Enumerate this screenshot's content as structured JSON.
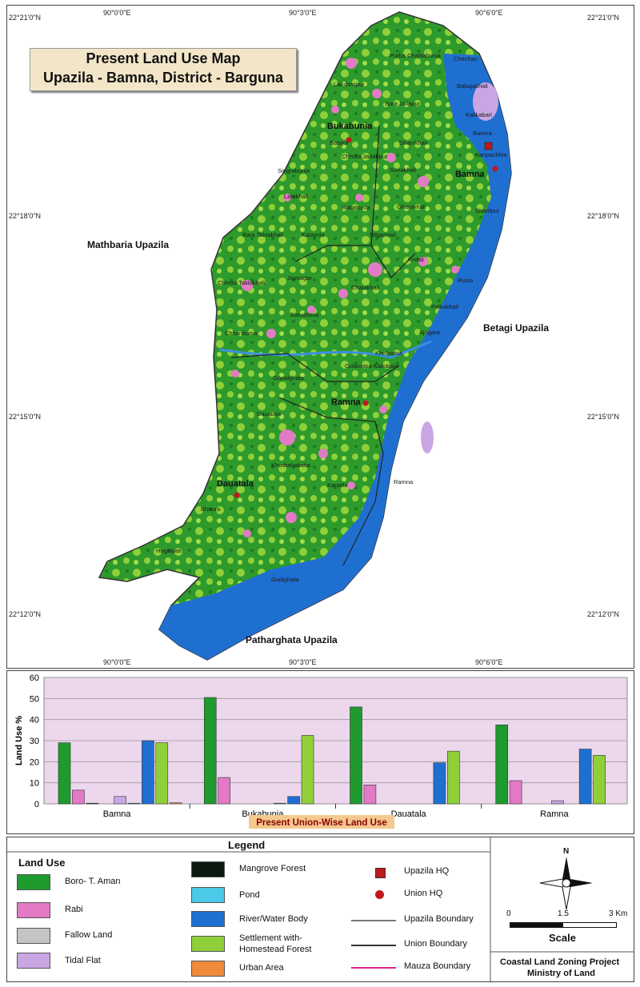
{
  "title": {
    "line1": "Present Land Use Map",
    "line2": "Upazila - Bamna, District - Barguna"
  },
  "coords": {
    "lon_labels": [
      "90°0'0\"E",
      "90°3'0\"E",
      "90°6'0\"E"
    ],
    "lat_labels": [
      "22°21'0\"N",
      "22°18'0\"N",
      "22°15'0\"N",
      "22°12'0\"N"
    ]
  },
  "neighbors": {
    "west": "Mathbaria Upazila",
    "east": "Betagi Upazila",
    "south": "Patharghata Upazila"
  },
  "unions": {
    "bukabunia": "Bukabunia",
    "bamna": "Bamna",
    "ramna": "Ramna",
    "dauatala": "Dauatala"
  },
  "places": [
    "Purba Chalitabunia",
    "Chechan",
    "Lakshmipur",
    "Babajakhali",
    "Bara Jaliapur",
    "Kalikabari",
    "Bamna",
    "Batajor",
    "Dhanikhali",
    "Kanpachhia",
    "Chhota Jadabpur",
    "Sonakhali",
    "Singrabunia",
    "Latakhali",
    "Bukabunia",
    "Gharakhali",
    "Sharifpur",
    "Bara Taktakhali",
    "Kalaynia",
    "Nilgamtali",
    "Amtali",
    "Chhota Taktakhali",
    "Joynagar",
    "Rusia",
    "Chalakhali",
    "Basabunia",
    "Polkakhali",
    "Chhanbunia",
    "Ajagara",
    "Kholpatua",
    "Golachipa Kaikalaia",
    "Gopalghata",
    "Ramna",
    "Dauatala",
    "Khudrahabatia",
    "Karaitla",
    "Ramna",
    "Dauatala",
    "Bhaora",
    "Hogalpati",
    "Gudighata"
  ],
  "chart_data": {
    "type": "bar",
    "title": "Present Union-Wise Land Use",
    "xlabel": "Present Union-Wise Land Use",
    "ylabel": "Land Use %",
    "ylim": [
      0,
      60
    ],
    "yticks": [
      0,
      10,
      20,
      30,
      40,
      50,
      60
    ],
    "categories": [
      "Bamna",
      "Bukabunia",
      "Dauatala",
      "Ramna"
    ],
    "grid": true,
    "series": [
      {
        "name": "Boro- T. Aman",
        "color": "#1e9a2e",
        "values": [
          29,
          50.5,
          46,
          37.5
        ]
      },
      {
        "name": "Rabi",
        "color": "#e27ac6",
        "values": [
          6.5,
          12.5,
          9,
          11
        ]
      },
      {
        "name": "Mangrove Forest",
        "color": "#0b1a10",
        "values": [
          0.3,
          0,
          0,
          0
        ]
      },
      {
        "name": "Fallow Land",
        "color": "#c4c4c4",
        "values": [
          0,
          0,
          0,
          0
        ]
      },
      {
        "name": "Tidal Flat",
        "color": "#c9a6e3",
        "values": [
          3.5,
          0,
          0,
          1.5
        ]
      },
      {
        "name": "Pond",
        "color": "#4cc8e8",
        "values": [
          0.3,
          0.3,
          0,
          0
        ]
      },
      {
        "name": "River/Water Body",
        "color": "#1f6fd1",
        "values": [
          30,
          3.5,
          19.5,
          26
        ]
      },
      {
        "name": "Settlement with-Homestead Forest",
        "color": "#8fd03a",
        "values": [
          29,
          32.5,
          25,
          23
        ]
      },
      {
        "name": "Urban Area",
        "color": "#f08a3c",
        "values": [
          0.5,
          0,
          0,
          0
        ]
      }
    ]
  },
  "legend": {
    "heading": "Legend",
    "land_use_heading": "Land Use",
    "items": [
      {
        "label": "Boro- T. Aman",
        "color": "#1e9a2e"
      },
      {
        "label": "Rabi",
        "color": "#e27ac6"
      },
      {
        "label": "Fallow Land",
        "color": "#c4c4c4"
      },
      {
        "label": "Tidal Flat",
        "color": "#c9a6e3"
      },
      {
        "label": "Mangrove Forest",
        "color": "#0b1a10"
      },
      {
        "label": "Pond",
        "color": "#4cc8e8"
      },
      {
        "label": "River/Water Body",
        "color": "#1f6fd1"
      },
      {
        "label": "Settlement with-",
        "color": "#8fd03a"
      },
      {
        "label": "Urban Area",
        "color": "#f08a3c"
      }
    ],
    "settlement_line2": "Homestead Forest",
    "symbols": {
      "upazila_hq": "Upazila HQ",
      "union_hq": "Union HQ",
      "upazila_boundary": "Upazila Boundary",
      "union_boundary": "Union Boundary",
      "mauza_boundary": "Mauza Boundary"
    },
    "north": "N",
    "scale": {
      "zero": "0",
      "mid": "1.5",
      "max": "3 Km",
      "label": "Scale"
    },
    "credit_line1": "Coastal Land Zoning Project",
    "credit_line2": "Ministry of Land"
  }
}
